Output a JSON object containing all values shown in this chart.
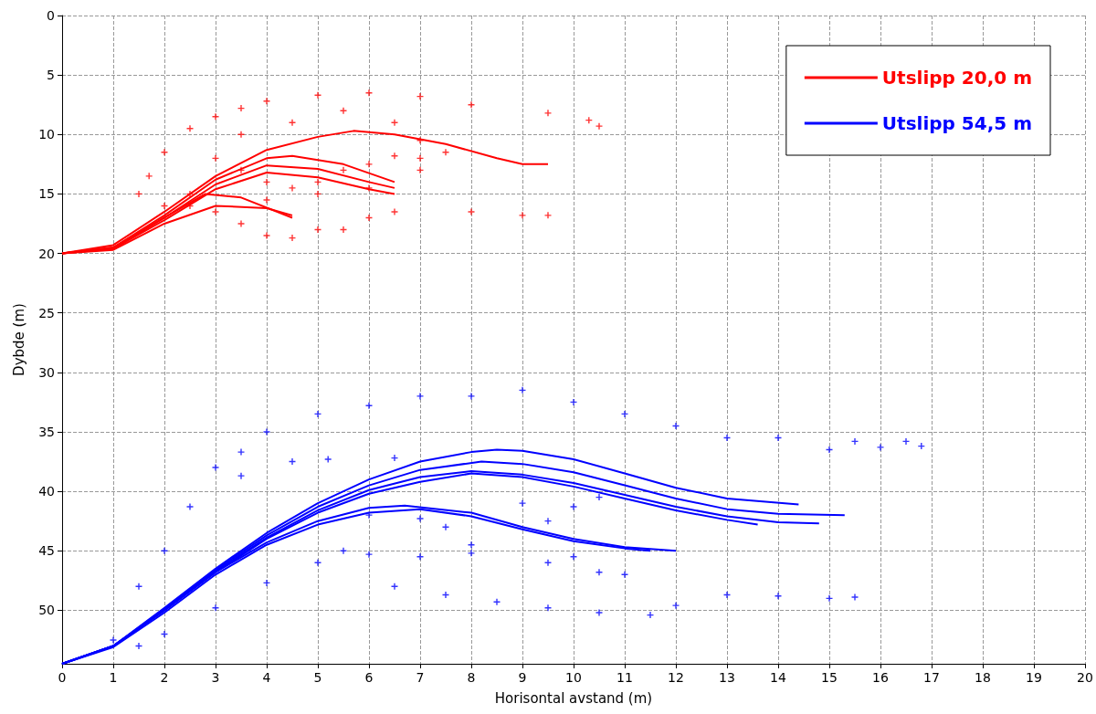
{
  "chart_data": {
    "type": "line",
    "xlabel": "Horisontal avstand (m)",
    "ylabel": "Dybde (m)",
    "xlim": [
      0,
      20
    ],
    "xticks": [
      0,
      1,
      2,
      3,
      4,
      5,
      6,
      7,
      8,
      9,
      10,
      11,
      12,
      13,
      14,
      15,
      16,
      17,
      18,
      19,
      20
    ],
    "ylim": [
      54.5,
      0
    ],
    "yticks": [
      0,
      5,
      10,
      15,
      20,
      25,
      30,
      35,
      40,
      45,
      50
    ],
    "grid": true,
    "legend": "top right",
    "line_style": "solid",
    "series": [
      {
        "name": "Utslipp 20,0 m",
        "color": "#ff0000",
        "x": [
          0,
          1,
          2,
          3,
          4,
          5,
          5.7,
          6.5,
          7.5,
          8.5,
          9,
          9.5
        ],
        "values": [
          20,
          19.3,
          16.5,
          13.5,
          11.3,
          10.2,
          9.7,
          10,
          10.8,
          12,
          12.5,
          12.5
        ]
      },
      {
        "color": "#ff0000",
        "x": [
          0,
          1,
          2,
          3,
          4,
          4.5,
          5.5,
          6.5
        ],
        "values": [
          20,
          19.5,
          16.8,
          13.8,
          12,
          11.8,
          12.5,
          14
        ]
      },
      {
        "color": "#ff0000",
        "x": [
          0,
          1,
          2,
          3,
          4,
          5,
          6,
          6.5
        ],
        "values": [
          20,
          19.5,
          17,
          14.2,
          12.6,
          12.9,
          14,
          14.5
        ]
      },
      {
        "color": "#ff0000",
        "x": [
          0,
          1,
          2,
          3,
          4,
          5,
          6,
          6.5
        ],
        "values": [
          20,
          19.6,
          17.2,
          14.6,
          13.2,
          13.6,
          14.6,
          15
        ]
      },
      {
        "color": "#ff0000",
        "x": [
          0,
          1,
          2,
          2.8,
          3.5,
          4.5
        ],
        "values": [
          20,
          19.6,
          17,
          15,
          15.3,
          17
        ]
      },
      {
        "color": "#ff0000",
        "x": [
          0,
          1,
          2,
          3,
          4,
          4.5
        ],
        "values": [
          20,
          19.7,
          17.5,
          16,
          16.2,
          16.8
        ]
      },
      {
        "type": "scatter",
        "marker": "cross",
        "color": "#ff0000",
        "x": [
          1.5,
          2,
          2.5,
          3,
          3.5,
          4,
          5,
          6,
          7,
          8,
          9.5,
          10.3,
          10.5,
          3,
          3.5,
          4,
          4.5,
          5,
          5.5,
          6,
          6.5,
          7,
          7.5,
          2.5,
          3,
          3.5,
          4,
          4.5,
          5,
          5.5,
          6,
          6.5,
          8,
          9,
          9.5,
          2,
          2.5,
          4,
          5,
          6,
          7,
          3.5,
          4.5,
          5.5,
          6.5,
          7,
          1.7
        ],
        "values": [
          15,
          11.5,
          9.5,
          8.5,
          7.8,
          7.2,
          6.7,
          6.5,
          6.8,
          7.5,
          8.2,
          8.8,
          9.3,
          12,
          13,
          14,
          14.5,
          15,
          13,
          12.5,
          11.8,
          12,
          11.5,
          16,
          16.5,
          17.5,
          18.5,
          18.7,
          18,
          18,
          17,
          16.5,
          16.5,
          16.8,
          16.8,
          16,
          15,
          15.5,
          14,
          14.5,
          13,
          10,
          9,
          8,
          9,
          10.5,
          13.5
        ]
      },
      {
        "name": "Utslipp 54,5 m",
        "color": "#0000ff",
        "x": [
          0,
          1,
          2,
          3,
          4,
          5,
          6,
          7,
          8,
          8.5,
          9,
          10,
          11,
          12,
          13,
          14.4
        ],
        "values": [
          54.5,
          53,
          49.8,
          46.5,
          43.5,
          41,
          39,
          37.5,
          36.7,
          36.5,
          36.6,
          37.3,
          38.5,
          39.7,
          40.6,
          41.1
        ]
      },
      {
        "color": "#0000ff",
        "x": [
          0,
          1,
          2,
          3,
          4,
          5,
          6,
          7,
          8.2,
          9,
          10,
          11,
          12,
          13,
          14,
          15.3
        ],
        "values": [
          54.5,
          53,
          49.9,
          46.6,
          43.7,
          41.3,
          39.5,
          38.2,
          37.5,
          37.7,
          38.4,
          39.5,
          40.6,
          41.5,
          41.9,
          42
        ]
      },
      {
        "color": "#0000ff",
        "x": [
          0,
          1,
          2,
          3,
          4,
          5,
          6,
          7,
          8,
          9,
          10,
          11,
          12,
          13,
          14,
          14.8
        ],
        "values": [
          54.5,
          53,
          50,
          46.7,
          43.9,
          41.6,
          39.9,
          38.8,
          38.3,
          38.6,
          39.3,
          40.3,
          41.3,
          42.1,
          42.6,
          42.7
        ]
      },
      {
        "color": "#0000ff",
        "x": [
          0,
          1,
          2,
          3,
          4,
          5,
          6,
          7,
          8,
          9,
          10,
          11,
          12,
          13,
          13.6
        ],
        "values": [
          54.5,
          53,
          50,
          46.8,
          44,
          41.8,
          40.2,
          39.2,
          38.5,
          38.8,
          39.6,
          40.6,
          41.6,
          42.4,
          42.8
        ]
      },
      {
        "color": "#0000ff",
        "x": [
          0,
          1,
          2,
          3,
          4,
          5,
          6,
          6.7,
          8,
          9,
          10,
          11,
          12
        ],
        "values": [
          54.5,
          53,
          50,
          46.8,
          44.3,
          42.5,
          41.4,
          41.2,
          41.8,
          43,
          44,
          44.7,
          45
        ]
      },
      {
        "color": "#0000ff",
        "x": [
          0,
          1,
          2,
          3,
          4,
          5,
          6,
          7,
          8,
          9,
          10,
          11,
          11.5
        ],
        "values": [
          54.5,
          53.1,
          50.2,
          47,
          44.5,
          42.8,
          41.8,
          41.5,
          42.1,
          43.2,
          44.2,
          44.8,
          45
        ]
      },
      {
        "type": "scatter",
        "marker": "cross",
        "color": "#0000ff",
        "x": [
          1,
          1.5,
          2,
          2.5,
          3,
          3.5,
          4,
          5,
          6,
          7,
          8,
          9,
          10,
          11,
          12,
          13,
          14,
          15,
          15.5,
          16,
          16.5,
          16.8,
          1.5,
          2,
          3,
          4,
          5,
          5.5,
          6,
          7,
          8,
          6.5,
          7.5,
          8.5,
          9.5,
          10.5,
          11.5,
          12,
          13,
          14,
          15,
          15.5,
          6,
          7,
          7.5,
          8,
          9,
          9.5,
          10,
          10.5,
          6.5,
          5.2,
          3.5,
          4.5,
          9.5,
          10,
          11,
          10.5
        ],
        "values": [
          52.5,
          48,
          45,
          41.3,
          38,
          36.7,
          35,
          33.5,
          32.8,
          32,
          32,
          31.5,
          32.5,
          33.5,
          34.5,
          35.5,
          35.5,
          36.5,
          35.8,
          36.3,
          35.8,
          36.2,
          53,
          52,
          49.8,
          47.7,
          46,
          45,
          45.3,
          45.5,
          45.2,
          48,
          48.7,
          49.3,
          49.8,
          50.2,
          50.4,
          49.6,
          48.7,
          48.8,
          49,
          48.9,
          42,
          42.3,
          43,
          44.5,
          41,
          42.5,
          41.3,
          40.5,
          37.2,
          37.3,
          38.7,
          37.5,
          46,
          45.5,
          47,
          46.8
        ]
      }
    ]
  }
}
